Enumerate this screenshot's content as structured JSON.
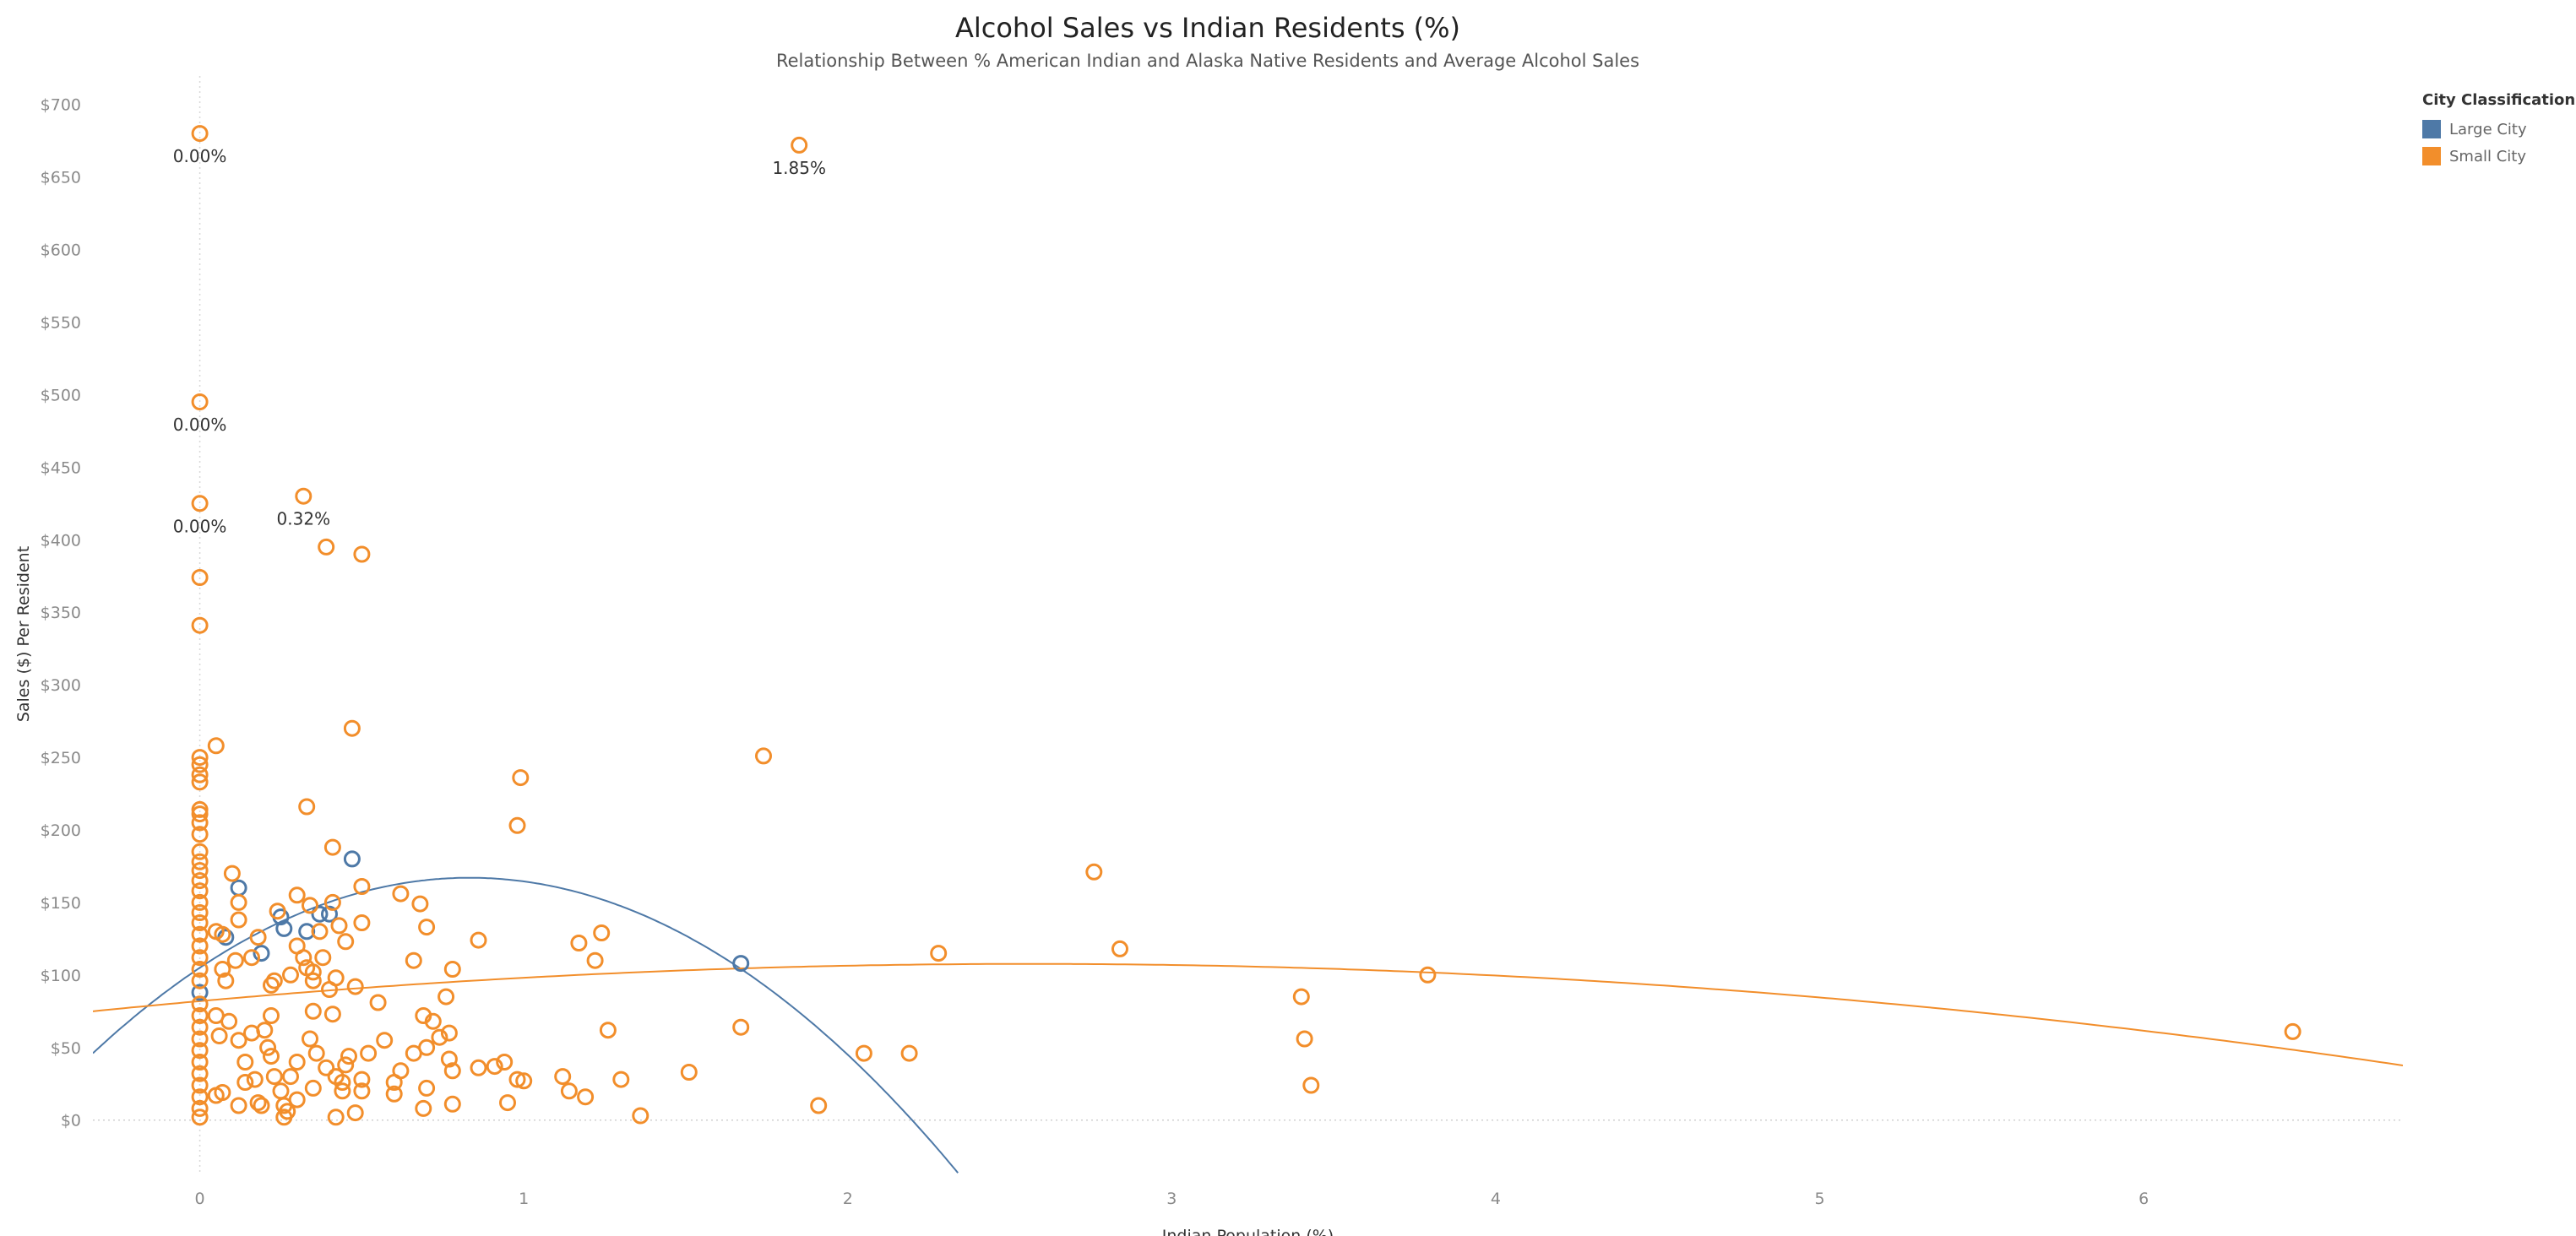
{
  "chart_data": {
    "type": "scatter",
    "title": "Alcohol Sales vs Indian Residents (%)",
    "subtitle": "Relationship Between % American Indian and Alaska Native Residents and Average Alcohol Sales",
    "xlabel": "Indian Population (%)",
    "ylabel": "Sales ($) Per Resident",
    "xlim": [
      -0.33,
      6.8
    ],
    "ylim": [
      -38,
      708
    ],
    "xticks": [
      0,
      1,
      2,
      3,
      4,
      5,
      6
    ],
    "yticks": [
      0,
      50,
      100,
      150,
      200,
      250,
      300,
      350,
      400,
      450,
      500,
      550,
      600,
      650,
      700
    ],
    "ytick_prefix": "$",
    "grid": false,
    "legend": {
      "title": "City Classification",
      "position": "top-right",
      "entries": [
        {
          "name": "Large City",
          "color": "#4e79a7"
        },
        {
          "name": "Small City",
          "color": "#f28e2b"
        }
      ]
    },
    "series": [
      {
        "name": "Large City",
        "color": "#4e79a7",
        "points": [
          [
            0.08,
            126
          ],
          [
            0.12,
            160
          ],
          [
            0.19,
            115
          ],
          [
            0.25,
            140
          ],
          [
            0.26,
            132
          ],
          [
            0.33,
            130
          ],
          [
            0.37,
            142
          ],
          [
            0.4,
            142
          ],
          [
            0.47,
            180
          ],
          [
            0.0,
            88
          ],
          [
            1.67,
            108
          ]
        ]
      },
      {
        "name": "Small City",
        "color": "#f28e2b",
        "points": [
          [
            0.0,
            680
          ],
          [
            1.85,
            672
          ],
          [
            0.0,
            495
          ],
          [
            0.0,
            425
          ],
          [
            0.32,
            430
          ],
          [
            0.39,
            395
          ],
          [
            0.5,
            390
          ],
          [
            0.0,
            374
          ],
          [
            0.0,
            341
          ],
          [
            0.47,
            270
          ],
          [
            0.05,
            258
          ],
          [
            1.74,
            251
          ],
          [
            0.99,
            236
          ],
          [
            0.33,
            216
          ],
          [
            0.98,
            203
          ],
          [
            0.41,
            188
          ],
          [
            2.76,
            171
          ],
          [
            0.1,
            170
          ],
          [
            0.0,
            250
          ],
          [
            0.0,
            245
          ],
          [
            0.0,
            238
          ],
          [
            0.0,
            233
          ],
          [
            0.0,
            214
          ],
          [
            0.0,
            211
          ],
          [
            0.0,
            205
          ],
          [
            0.0,
            197
          ],
          [
            0.0,
            185
          ],
          [
            0.0,
            178
          ],
          [
            0.0,
            172
          ],
          [
            0.0,
            165
          ],
          [
            0.0,
            158
          ],
          [
            0.0,
            150
          ],
          [
            0.0,
            143
          ],
          [
            0.0,
            136
          ],
          [
            0.0,
            128
          ],
          [
            0.0,
            120
          ],
          [
            0.0,
            112
          ],
          [
            0.0,
            104
          ],
          [
            0.0,
            96
          ],
          [
            0.0,
            80
          ],
          [
            0.0,
            72
          ],
          [
            0.0,
            64
          ],
          [
            0.0,
            56
          ],
          [
            0.0,
            48
          ],
          [
            0.0,
            40
          ],
          [
            0.0,
            32
          ],
          [
            0.0,
            24
          ],
          [
            0.0,
            16
          ],
          [
            0.0,
            8
          ],
          [
            0.0,
            2
          ],
          [
            0.07,
            128
          ],
          [
            0.12,
            150
          ],
          [
            0.12,
            138
          ],
          [
            0.05,
            130
          ],
          [
            0.07,
            104
          ],
          [
            0.08,
            96
          ],
          [
            0.11,
            110
          ],
          [
            0.16,
            112
          ],
          [
            0.18,
            126
          ],
          [
            0.22,
            93
          ],
          [
            0.23,
            96
          ],
          [
            0.24,
            144
          ],
          [
            0.28,
            100
          ],
          [
            0.3,
            120
          ],
          [
            0.3,
            155
          ],
          [
            0.32,
            112
          ],
          [
            0.33,
            105
          ],
          [
            0.34,
            148
          ],
          [
            0.35,
            102
          ],
          [
            0.35,
            96
          ],
          [
            0.37,
            130
          ],
          [
            0.38,
            112
          ],
          [
            0.4,
            90
          ],
          [
            0.41,
            150
          ],
          [
            0.42,
            98
          ],
          [
            0.43,
            134
          ],
          [
            0.45,
            123
          ],
          [
            0.48,
            92
          ],
          [
            0.5,
            161
          ],
          [
            0.5,
            136
          ],
          [
            0.55,
            81
          ],
          [
            0.62,
            156
          ],
          [
            0.66,
            110
          ],
          [
            0.68,
            149
          ],
          [
            0.7,
            133
          ],
          [
            0.76,
            85
          ],
          [
            0.78,
            104
          ],
          [
            0.86,
            124
          ],
          [
            1.17,
            122
          ],
          [
            1.22,
            110
          ],
          [
            1.24,
            129
          ],
          [
            0.09,
            68
          ],
          [
            0.05,
            72
          ],
          [
            0.06,
            58
          ],
          [
            0.12,
            55
          ],
          [
            0.14,
            40
          ],
          [
            0.16,
            60
          ],
          [
            0.2,
            62
          ],
          [
            0.21,
            50
          ],
          [
            0.22,
            72
          ],
          [
            0.22,
            44
          ],
          [
            0.28,
            30
          ],
          [
            0.3,
            40
          ],
          [
            0.34,
            56
          ],
          [
            0.35,
            75
          ],
          [
            0.36,
            46
          ],
          [
            0.39,
            36
          ],
          [
            0.41,
            73
          ],
          [
            0.42,
            30
          ],
          [
            0.44,
            26
          ],
          [
            0.45,
            38
          ],
          [
            0.46,
            44
          ],
          [
            0.5,
            28
          ],
          [
            0.52,
            46
          ],
          [
            0.57,
            55
          ],
          [
            0.6,
            26
          ],
          [
            0.62,
            34
          ],
          [
            0.66,
            46
          ],
          [
            0.69,
            72
          ],
          [
            0.7,
            50
          ],
          [
            0.72,
            68
          ],
          [
            0.74,
            57
          ],
          [
            0.77,
            60
          ],
          [
            0.77,
            42
          ],
          [
            0.78,
            34
          ],
          [
            0.86,
            36
          ],
          [
            0.91,
            37
          ],
          [
            0.94,
            40
          ],
          [
            0.98,
            28
          ],
          [
            1.0,
            27
          ],
          [
            1.12,
            30
          ],
          [
            1.14,
            20
          ],
          [
            1.19,
            16
          ],
          [
            1.26,
            62
          ],
          [
            1.3,
            28
          ],
          [
            1.51,
            33
          ],
          [
            1.67,
            64
          ],
          [
            2.05,
            46
          ],
          [
            2.19,
            46
          ],
          [
            2.28,
            115
          ],
          [
            2.84,
            118
          ],
          [
            3.4,
            85
          ],
          [
            3.41,
            56
          ],
          [
            3.43,
            24
          ],
          [
            3.79,
            100
          ],
          [
            6.46,
            61
          ],
          [
            0.05,
            17
          ],
          [
            0.07,
            19
          ],
          [
            0.12,
            10
          ],
          [
            0.14,
            26
          ],
          [
            0.17,
            28
          ],
          [
            0.18,
            12
          ],
          [
            0.19,
            10
          ],
          [
            0.23,
            30
          ],
          [
            0.25,
            20
          ],
          [
            0.26,
            10
          ],
          [
            0.27,
            6
          ],
          [
            0.26,
            2
          ],
          [
            0.3,
            14
          ],
          [
            0.35,
            22
          ],
          [
            0.42,
            2
          ],
          [
            0.44,
            20
          ],
          [
            0.48,
            5
          ],
          [
            0.5,
            20
          ],
          [
            0.6,
            18
          ],
          [
            0.69,
            8
          ],
          [
            0.7,
            22
          ],
          [
            0.78,
            11
          ],
          [
            0.95,
            12
          ],
          [
            1.36,
            3
          ],
          [
            1.91,
            10
          ]
        ]
      }
    ],
    "trend_lines": [
      {
        "series": "Large City",
        "type": "quadratic",
        "coeffs": [
          105,
          149,
          -89.5
        ],
        "x_range": [
          -0.33,
          2.34
        ]
      },
      {
        "series": "Small City",
        "type": "quadratic",
        "coeffs": [
          82,
          20,
          -3.9
        ],
        "x_range": [
          -0.33,
          6.8
        ]
      }
    ],
    "annotations": [
      {
        "x": 0.0,
        "y": 680,
        "text": "0.00%"
      },
      {
        "x": 1.85,
        "y": 672,
        "text": "1.85%"
      },
      {
        "x": 0.0,
        "y": 495,
        "text": "0.00%"
      },
      {
        "x": 0.0,
        "y": 425,
        "text": "0.00%"
      },
      {
        "x": 0.32,
        "y": 430,
        "text": "0.32%"
      }
    ]
  }
}
